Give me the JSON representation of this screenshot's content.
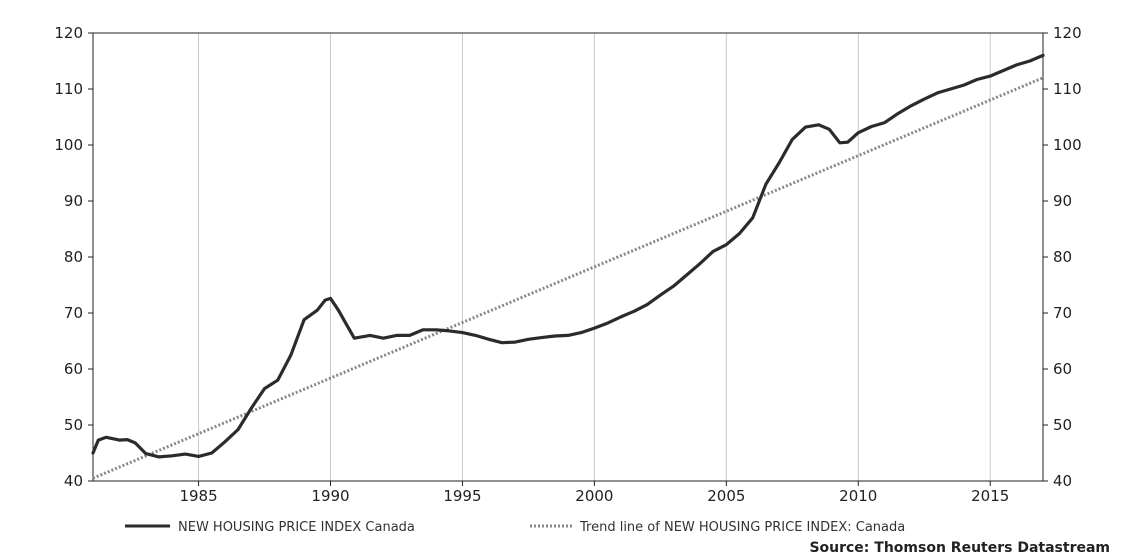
{
  "colors": {
    "series": "#2b2b2b",
    "trend": "#888888",
    "grid": "#c8c8c8",
    "frame": "#222222"
  },
  "chart_data": {
    "type": "line",
    "title": "",
    "xlabel": "",
    "ylabel": "",
    "xlim": [
      1981,
      2017
    ],
    "ylim": [
      40,
      120
    ],
    "x_ticks": [
      "1985",
      "1990",
      "1995",
      "2000",
      "2005",
      "2010",
      "2015"
    ],
    "y_ticks": [
      "40",
      "50",
      "60",
      "70",
      "80",
      "90",
      "100",
      "110",
      "120"
    ],
    "grid": "vertical",
    "legend_position": "bottom",
    "series": [
      {
        "name": "NEW HOUSING PRICE INDEX Canada",
        "style": "solid",
        "points": [
          [
            1981.0,
            45.0
          ],
          [
            1981.2,
            47.3
          ],
          [
            1981.5,
            47.8
          ],
          [
            1982.0,
            47.3
          ],
          [
            1982.3,
            47.4
          ],
          [
            1982.6,
            46.8
          ],
          [
            1983.0,
            44.9
          ],
          [
            1983.5,
            44.3
          ],
          [
            1984.0,
            44.5
          ],
          [
            1984.5,
            44.8
          ],
          [
            1985.0,
            44.4
          ],
          [
            1985.5,
            45.0
          ],
          [
            1986.0,
            47.0
          ],
          [
            1986.5,
            49.2
          ],
          [
            1987.0,
            53.0
          ],
          [
            1987.5,
            56.5
          ],
          [
            1988.0,
            58.0
          ],
          [
            1988.5,
            62.5
          ],
          [
            1989.0,
            68.8
          ],
          [
            1989.5,
            70.5
          ],
          [
            1989.8,
            72.3
          ],
          [
            1990.0,
            72.6
          ],
          [
            1990.3,
            70.5
          ],
          [
            1990.6,
            68.0
          ],
          [
            1990.9,
            65.5
          ],
          [
            1991.5,
            66.0
          ],
          [
            1992.0,
            65.5
          ],
          [
            1992.5,
            66.0
          ],
          [
            1993.0,
            66.0
          ],
          [
            1993.5,
            67.0
          ],
          [
            1994.0,
            67.0
          ],
          [
            1994.5,
            66.8
          ],
          [
            1995.0,
            66.5
          ],
          [
            1995.5,
            66.0
          ],
          [
            1996.0,
            65.3
          ],
          [
            1996.5,
            64.7
          ],
          [
            1997.0,
            64.8
          ],
          [
            1997.5,
            65.3
          ],
          [
            1998.0,
            65.6
          ],
          [
            1998.5,
            65.9
          ],
          [
            1999.0,
            66.0
          ],
          [
            1999.5,
            66.5
          ],
          [
            2000.0,
            67.3
          ],
          [
            2000.5,
            68.2
          ],
          [
            2001.0,
            69.3
          ],
          [
            2001.5,
            70.3
          ],
          [
            2002.0,
            71.5
          ],
          [
            2002.5,
            73.2
          ],
          [
            2003.0,
            74.8
          ],
          [
            2003.5,
            76.8
          ],
          [
            2004.0,
            78.8
          ],
          [
            2004.5,
            81.0
          ],
          [
            2005.0,
            82.2
          ],
          [
            2005.5,
            84.2
          ],
          [
            2006.0,
            87.0
          ],
          [
            2006.5,
            93.0
          ],
          [
            2007.0,
            96.8
          ],
          [
            2007.5,
            101.0
          ],
          [
            2008.0,
            103.2
          ],
          [
            2008.5,
            103.6
          ],
          [
            2008.9,
            102.8
          ],
          [
            2009.3,
            100.4
          ],
          [
            2009.6,
            100.5
          ],
          [
            2010.0,
            102.2
          ],
          [
            2010.5,
            103.3
          ],
          [
            2011.0,
            104.0
          ],
          [
            2011.5,
            105.6
          ],
          [
            2012.0,
            107.0
          ],
          [
            2012.5,
            108.2
          ],
          [
            2013.0,
            109.3
          ],
          [
            2013.5,
            110.0
          ],
          [
            2014.0,
            110.7
          ],
          [
            2014.5,
            111.7
          ],
          [
            2015.0,
            112.3
          ],
          [
            2015.5,
            113.3
          ],
          [
            2016.0,
            114.3
          ],
          [
            2016.5,
            115.0
          ],
          [
            2017.0,
            116.0
          ]
        ]
      },
      {
        "name": "Trend line of NEW HOUSING PRICE INDEX: Canada",
        "style": "dotted",
        "points": [
          [
            1981.0,
            40.5
          ],
          [
            2017.0,
            112.0
          ]
        ]
      }
    ]
  },
  "source": "Source: Thomson Reuters Datastream"
}
